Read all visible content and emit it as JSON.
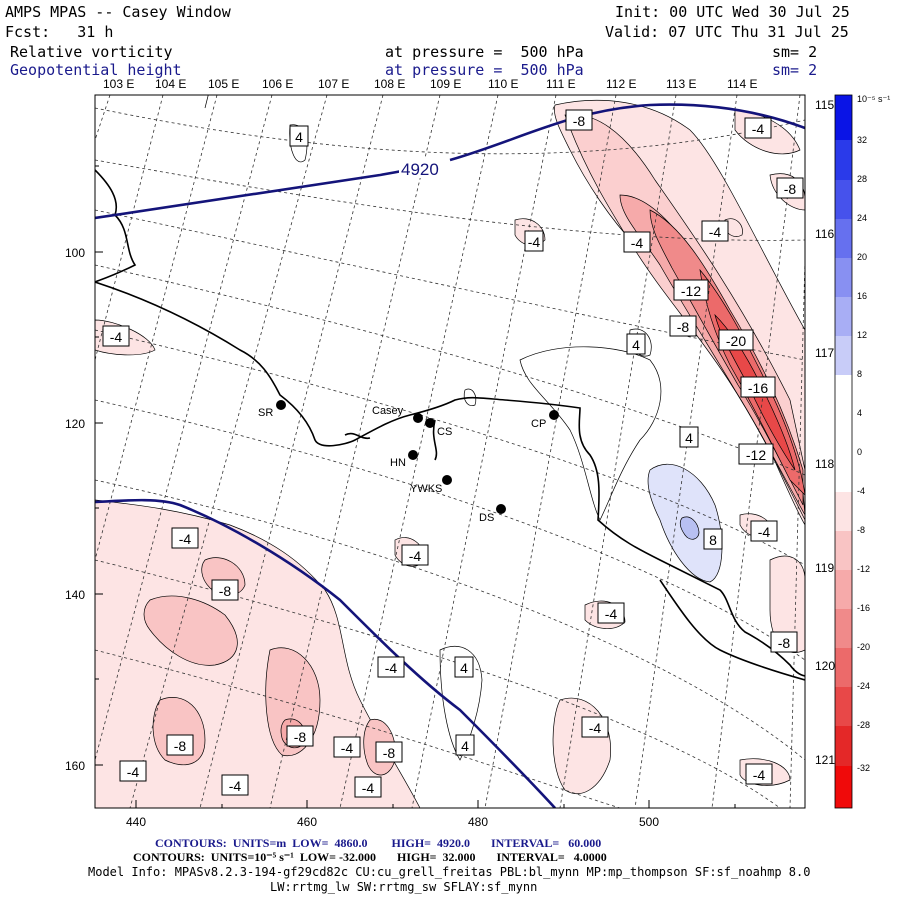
{
  "header": {
    "title": "AMPS MPAS -- Casey Window",
    "init": "Init: 00 UTC Wed 30 Jul 25",
    "fcst": "Fcst:   31 h",
    "valid": "Valid: 07 UTC Thu 31 Jul 25",
    "field1": "Relative vorticity",
    "field1_level": "at pressure =  500 hPa",
    "field1_sm": "sm= 2",
    "field2": "Geopotential height",
    "field2_level": "at pressure =  500 hPa",
    "field2_sm": "sm= 2"
  },
  "top_lon_labels": [
    "103 E",
    "104 E",
    "105 E",
    "106 E",
    "107 E",
    "108 E",
    "109 E",
    "110 E",
    "111 E",
    "112 E",
    "113 E",
    "114 E"
  ],
  "right_lon_labels": [
    "115 E",
    "116 E",
    "117 E",
    "118 E",
    "119 E",
    "120 E",
    "121 E"
  ],
  "left_axis_labels": [
    "100",
    "120",
    "140",
    "160"
  ],
  "bottom_axis_labels": [
    "440",
    "460",
    "480",
    "500"
  ],
  "colorbar": {
    "unit": "10⁻⁵ s⁻¹",
    "ticks": [
      "32",
      "28",
      "24",
      "20",
      "16",
      "12",
      "8",
      "4",
      "0",
      "-4",
      "-8",
      "-12",
      "-16",
      "-20",
      "-24",
      "-28",
      "-32"
    ]
  },
  "stations": [
    {
      "code": "SR"
    },
    {
      "code": "Casey"
    },
    {
      "code": "CS"
    },
    {
      "code": "HN"
    },
    {
      "code": "YWKS"
    },
    {
      "code": "CP"
    },
    {
      "code": "DS"
    }
  ],
  "contour_labels": {
    "height": "4920",
    "vort": [
      "4",
      "-8",
      "-4",
      "-8",
      "-4",
      "-4",
      "-4",
      "-12",
      "-8",
      "-4",
      "-20",
      "-16",
      "-12",
      "4",
      "4",
      "-4",
      "-4",
      "-8",
      "8",
      "-4",
      "-8",
      "-4",
      "-4",
      "4",
      "-8",
      "-8",
      "-4",
      "-8",
      "-4",
      "-4",
      "4",
      "-4",
      "-4",
      "-4",
      "-4"
    ]
  },
  "footer": {
    "line1_prefix": "CONTOURS:  UNITS=m  LOW=  4860.0        HIGH=  4920.0       INTERVAL=   60.000",
    "line2_prefix": "CONTOURS:  UNITS=10⁻⁵ s⁻¹  LOW= -32.000       HIGH=  32.000       INTERVAL=   4.0000",
    "line3": "Model Info: MPASv8.2.3-194-gf29cd82c CU:cu_grell_freitas PBL:bl_mynn MP:mp_thompson SF:sf_noahmp 8.0",
    "line4": "LW:rrtmg_lw SW:rrtmg_sw SFLAY:sf_mynn"
  },
  "colors": {
    "height_contour": "#14147a",
    "coast": "#000000",
    "neg_light": "#fde4e4",
    "neg_mid": "#f6aaaa",
    "neg_strong": "#ee6060",
    "neg_max": "#e83030",
    "pos_light": "#dfe3fa"
  }
}
